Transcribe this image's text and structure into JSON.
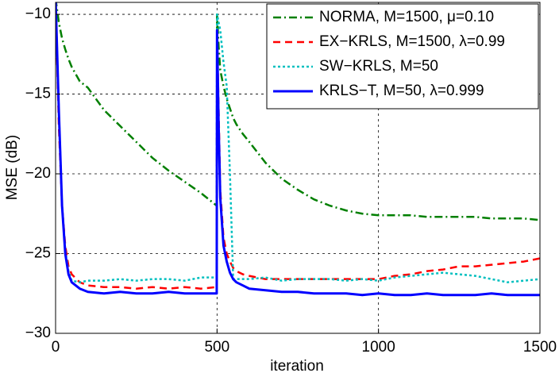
{
  "chart_data": {
    "type": "line",
    "xlabel": "iteration",
    "ylabel": "MSE (dB)",
    "xlim": [
      0,
      1500
    ],
    "ylim": [
      -30,
      -9.25
    ],
    "xticks": [
      0,
      500,
      1000,
      1500
    ],
    "yticks": [
      {
        "value": -30,
        "label": "−30"
      },
      {
        "value": -25,
        "label": "−25"
      },
      {
        "value": -20,
        "label": "−20"
      },
      {
        "value": -15,
        "label": "−15"
      },
      {
        "value": -10,
        "label": "−10"
      }
    ],
    "grid": true,
    "legend": "upper right",
    "x": [
      0,
      10,
      20,
      30,
      40,
      50,
      75,
      100,
      150,
      200,
      250,
      300,
      350,
      400,
      450,
      499,
      500,
      505,
      510,
      520,
      530,
      540,
      550,
      560,
      580,
      600,
      650,
      700,
      750,
      800,
      850,
      900,
      950,
      1000,
      1050,
      1100,
      1150,
      1200,
      1250,
      1300,
      1350,
      1400,
      1450,
      1500
    ],
    "series": [
      {
        "name": "NORMA, M=1500, μ=0.10",
        "color": "#007f00",
        "line_style": "dashdot",
        "values": [
          -9,
          -10.5,
          -11.5,
          -12.2,
          -12.8,
          -13.3,
          -14.2,
          -14.6,
          -16,
          -17,
          -18,
          -19,
          -19.8,
          -20.5,
          -21.2,
          -22,
          -10,
          -12,
          -13.5,
          -14.5,
          -15.3,
          -15.9,
          -16.5,
          -16.9,
          -17.5,
          -18,
          -19.3,
          -20.3,
          -21,
          -21.6,
          -22,
          -22.3,
          -22.5,
          -22.6,
          -22.6,
          -22.6,
          -22.7,
          -22.7,
          -22.7,
          -22.7,
          -22.8,
          -22.8,
          -22.8,
          -22.9
        ]
      },
      {
        "name": "EX−KRLS, M=1500, λ=0.99",
        "color": "#ff0000",
        "line_style": "dashed",
        "values": [
          -9,
          -17,
          -22,
          -24.5,
          -25.8,
          -26.3,
          -26.8,
          -27,
          -27.1,
          -27.1,
          -27.2,
          -27.1,
          -27.2,
          -27.1,
          -27.2,
          -27.1,
          -11,
          -16,
          -21,
          -24,
          -25,
          -25.5,
          -25.9,
          -26.1,
          -26.3,
          -26.4,
          -26.6,
          -26.6,
          -26.6,
          -26.6,
          -26.6,
          -26.6,
          -26.6,
          -26.6,
          -26.4,
          -26.3,
          -26.1,
          -26,
          -25.8,
          -25.8,
          -25.7,
          -25.6,
          -25.5,
          -25.3
        ]
      },
      {
        "name": "SW−KRLS, M=50",
        "color": "#00bfbf",
        "line_style": "dotted",
        "values": [
          -9,
          -16,
          -22,
          -24.8,
          -26.1,
          -26.7,
          -26.8,
          -26.7,
          -26.7,
          -26.6,
          -26.7,
          -26.6,
          -26.6,
          -26.7,
          -26.5,
          -26.5,
          -10,
          -10.5,
          -11,
          -13,
          -14.5,
          -20,
          -26.6,
          -26.6,
          -26.6,
          -26.6,
          -26.5,
          -26.7,
          -26.6,
          -26.6,
          -26.6,
          -26.7,
          -26.6,
          -26.7,
          -26.5,
          -26.4,
          -26.3,
          -26.2,
          -26.3,
          -26.4,
          -26.6,
          -26.8,
          -26.7,
          -26.6
        ]
      },
      {
        "name": "KRLS−T, M=50, λ=0.999",
        "color": "#0000ff",
        "line_style": "solid",
        "values": [
          -9,
          -16,
          -22,
          -25,
          -26.3,
          -26.8,
          -27.2,
          -27.4,
          -27.5,
          -27.4,
          -27.5,
          -27.5,
          -27.4,
          -27.5,
          -27.5,
          -27.5,
          -11,
          -17,
          -21.5,
          -24.5,
          -25.5,
          -26.2,
          -26.6,
          -26.8,
          -27,
          -27.2,
          -27.3,
          -27.4,
          -27.4,
          -27.5,
          -27.5,
          -27.5,
          -27.6,
          -27.5,
          -27.6,
          -27.6,
          -27.5,
          -27.6,
          -27.6,
          -27.6,
          -27.5,
          -27.6,
          -27.6,
          -27.6
        ]
      }
    ]
  }
}
